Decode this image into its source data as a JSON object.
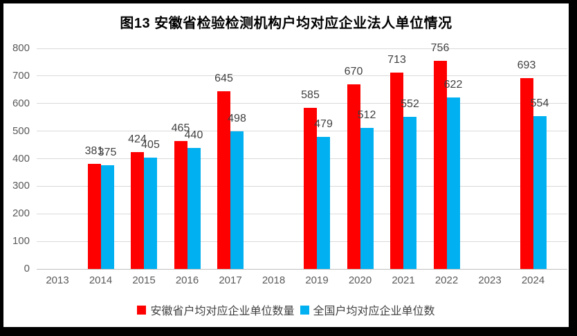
{
  "chart_data": {
    "type": "bar",
    "title": "图13 安徽省检验检测机构户均对应企业法人单位情况",
    "categories": [
      "2013",
      "2014",
      "2015",
      "2016",
      "2017",
      "2018",
      "2019",
      "2020",
      "2021",
      "2022",
      "2023",
      "2024"
    ],
    "series": [
      {
        "name": "安徽省户均对应企业单位数量",
        "color": "#FF0000",
        "values": [
          null,
          381,
          424,
          465,
          645,
          null,
          585,
          670,
          713,
          756,
          null,
          693
        ]
      },
      {
        "name": "全国户均对应企业单位数",
        "color": "#00B0F0",
        "values": [
          null,
          375,
          405,
          440,
          498,
          null,
          479,
          512,
          552,
          622,
          null,
          554
        ]
      }
    ],
    "xlabel": "",
    "ylabel": "",
    "ylim": [
      0,
      800
    ],
    "yticks": [
      0,
      100,
      200,
      300,
      400,
      500,
      600,
      700,
      800
    ],
    "grid": true,
    "legend_position": "bottom"
  },
  "colors": {
    "frame_border": "#000000",
    "background": "#FFFFFF",
    "gridline": "#D9D9D9",
    "axis_line": "#BFBFBF",
    "tick_text": "#595959",
    "data_label_text": "#404040",
    "legend_text": "#404040",
    "title_text": "#000000"
  }
}
